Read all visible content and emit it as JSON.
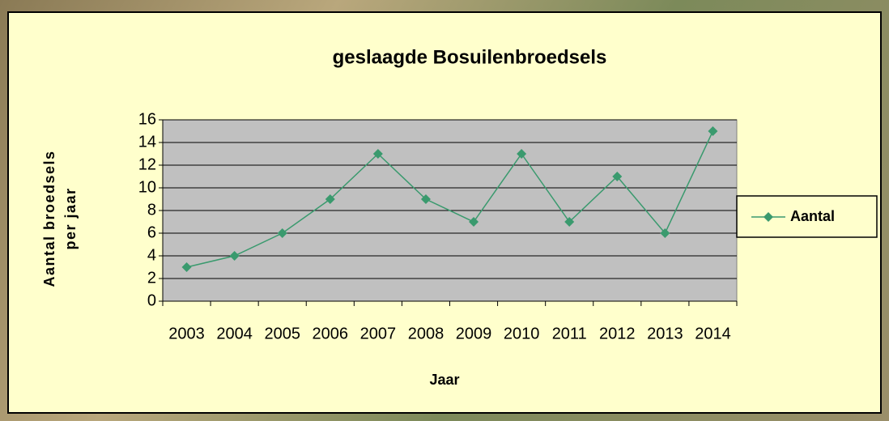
{
  "chart_data": {
    "type": "line",
    "title": "geslaagde Bosuilenbroedsels",
    "x_label": "Jaar",
    "y_label": [
      "Aantal broedsels",
      "per jaar"
    ],
    "categories": [
      "2003",
      "2004",
      "2005",
      "2006",
      "2007",
      "2008",
      "2009",
      "2010",
      "2011",
      "2012",
      "2013",
      "2014"
    ],
    "series": [
      {
        "name": "Aantal",
        "color": "#3a9a6e",
        "values": [
          3,
          4,
          6,
          9,
          13,
          9,
          7,
          13,
          7,
          11,
          6,
          15
        ]
      }
    ],
    "ylim": [
      0,
      16
    ],
    "yticks": [
      0,
      2,
      4,
      6,
      8,
      10,
      12,
      14,
      16
    ],
    "grid": true,
    "legend": "right",
    "plot_background": "#c0c0c0",
    "background": "#ffffcc"
  }
}
